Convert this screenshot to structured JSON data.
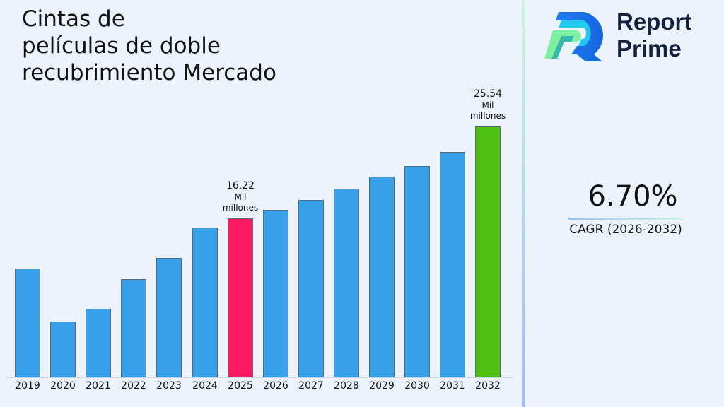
{
  "title": "Cintas de\npelículas de doble\nrecubrimiento Mercado",
  "brand": {
    "name": "Report\nPrime"
  },
  "cagr": {
    "value": "6.70%",
    "label": "CAGR (2026-2032)"
  },
  "colors": {
    "bar_default": "#38a0e8",
    "bar_highlight_base": "#fc1a62",
    "bar_highlight_final": "#4cc10f",
    "background": "#edf3fd",
    "brand_text": "#14213d"
  },
  "annotations": [
    {
      "year": "2025",
      "value": "16.22",
      "unit": "Mil\nmillones"
    },
    {
      "year": "2032",
      "value": "25.54",
      "unit": "Mil\nmillones"
    }
  ],
  "chart_data": {
    "type": "bar",
    "title": "Cintas de películas de doble recubrimiento Mercado",
    "xlabel": "",
    "ylabel": "",
    "unit": "Mil millones",
    "categories": [
      "2019",
      "2020",
      "2021",
      "2022",
      "2023",
      "2024",
      "2025",
      "2026",
      "2027",
      "2028",
      "2029",
      "2030",
      "2031",
      "2032"
    ],
    "values": [
      11.08,
      5.68,
      6.98,
      10.0,
      12.16,
      15.25,
      16.22,
      17.05,
      18.06,
      19.21,
      20.43,
      21.51,
      22.95,
      25.54
    ],
    "highlighted": {
      "2025": "#fc1a62",
      "2032": "#4cc10f"
    },
    "ylim": [
      0,
      28
    ],
    "grid": false,
    "legend": "none",
    "cagr": "6.70%",
    "cagr_period": "2026-2032"
  }
}
